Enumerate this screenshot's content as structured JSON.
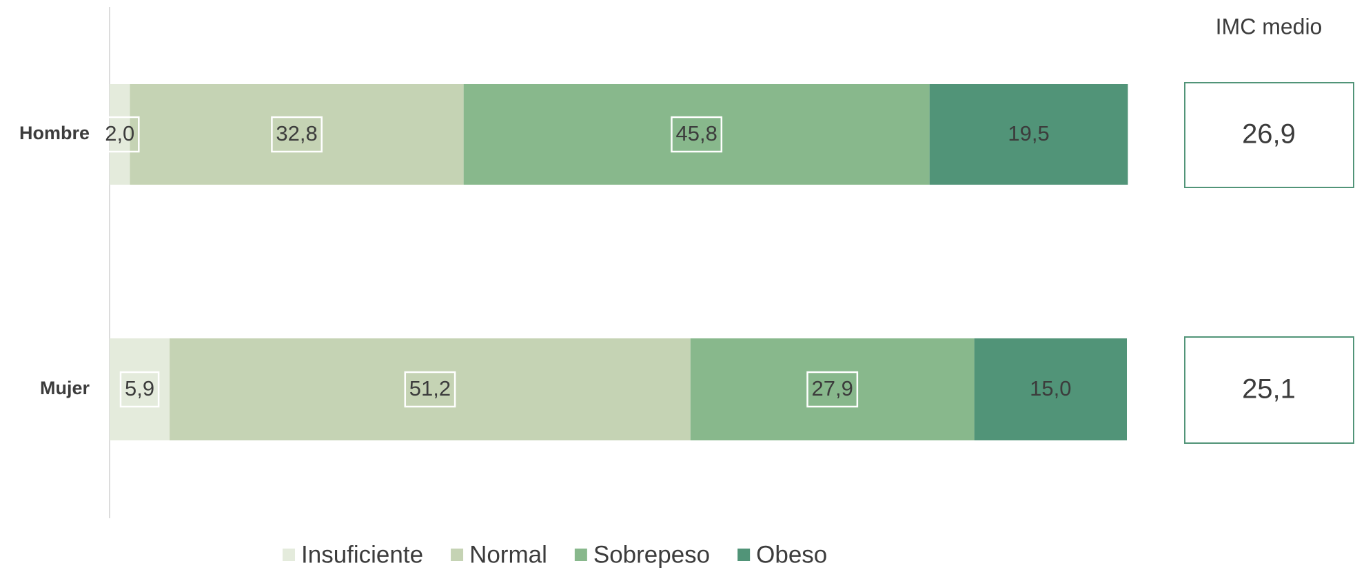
{
  "chart_data": {
    "type": "stacked-bar-horizontal",
    "categories": [
      "Hombre",
      "Mujer"
    ],
    "xlim": [
      0,
      100
    ],
    "series": [
      {
        "name": "Insuficiente",
        "color": "#e4ebdc",
        "values": [
          2.0,
          5.9
        ],
        "value_labels": [
          "2,0",
          "5,9"
        ]
      },
      {
        "name": "Normal",
        "color": "#c5d3b4",
        "values": [
          32.8,
          51.2
        ],
        "value_labels": [
          "32,8",
          "51,2"
        ]
      },
      {
        "name": "Sobrepeso",
        "color": "#88b88c",
        "values": [
          45.8,
          27.9
        ],
        "value_labels": [
          "45,8",
          "27,9"
        ]
      },
      {
        "name": "Obeso",
        "color": "#519478",
        "values": [
          19.5,
          15.0
        ],
        "value_labels": [
          "19,5",
          "15,0"
        ]
      }
    ],
    "mean_bmi": {
      "title": "IMC medio",
      "values": [
        26.9,
        25.1
      ],
      "value_labels": [
        "26,9",
        "25,1"
      ]
    }
  }
}
